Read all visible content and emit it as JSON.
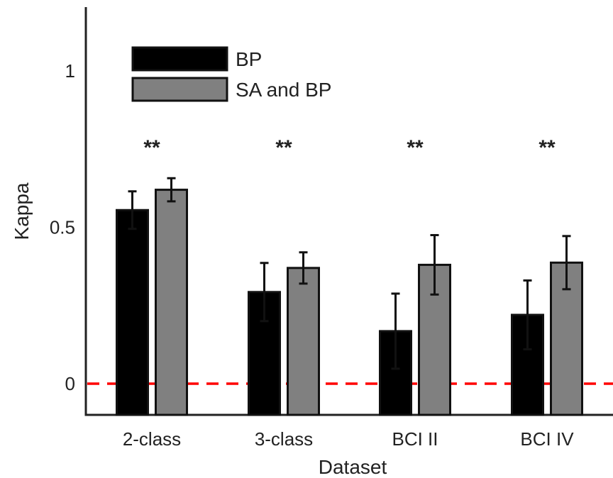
{
  "chart_data": {
    "type": "bar",
    "title": "",
    "xlabel": "Dataset",
    "ylabel": "Kappa",
    "ylim": [
      -0.1,
      1.2
    ],
    "yticks": [
      0,
      0.5,
      1
    ],
    "ytick_labels": [
      "0",
      "0.5",
      "1"
    ],
    "categories": [
      "2-class",
      "3-class",
      "BCI II",
      "BCI IV"
    ],
    "series": [
      {
        "name": "BP",
        "color": "#000000",
        "values": [
          0.555,
          0.293,
          0.168,
          0.22
        ],
        "errors": [
          0.06,
          0.093,
          0.12,
          0.11
        ]
      },
      {
        "name": "SA and BP",
        "color": "#808080",
        "values": [
          0.62,
          0.37,
          0.38,
          0.387
        ],
        "errors": [
          0.037,
          0.05,
          0.095,
          0.085
        ]
      }
    ],
    "annotations": [
      "**",
      "**",
      "**",
      "**"
    ],
    "reference_line": {
      "y": 0,
      "color": "#ff0000",
      "style": "dashed"
    },
    "legend_position": "top-left",
    "grid": false
  }
}
